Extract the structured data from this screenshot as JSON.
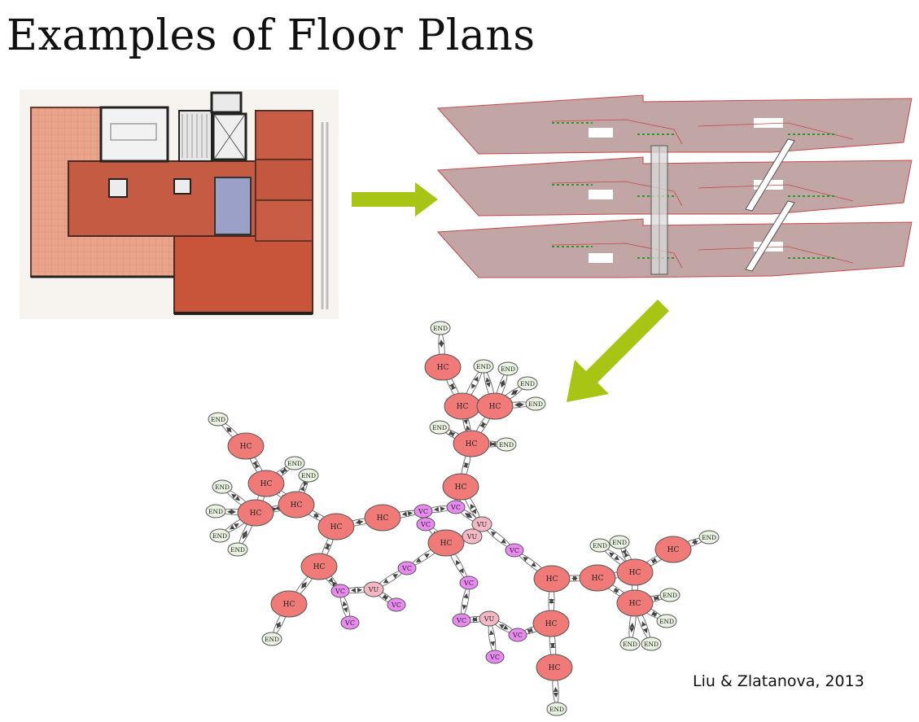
{
  "title": "Examples of Floor Plans",
  "credit": "Liu & Zlatanova, 2013",
  "colors": {
    "arrow": "#a8c414",
    "plan_room": "#c8553a",
    "plan_floor": "#e8a088",
    "slab": "#c2a6a6",
    "hc_node": "#ef7a78",
    "vc_node": "#e98af0",
    "vu_node": "#f4b8c4",
    "end_node": "#eaf2e2"
  },
  "graph": {
    "labels": {
      "hc": "HC",
      "vc": "VC",
      "vu": "VU",
      "end": "END"
    }
  }
}
